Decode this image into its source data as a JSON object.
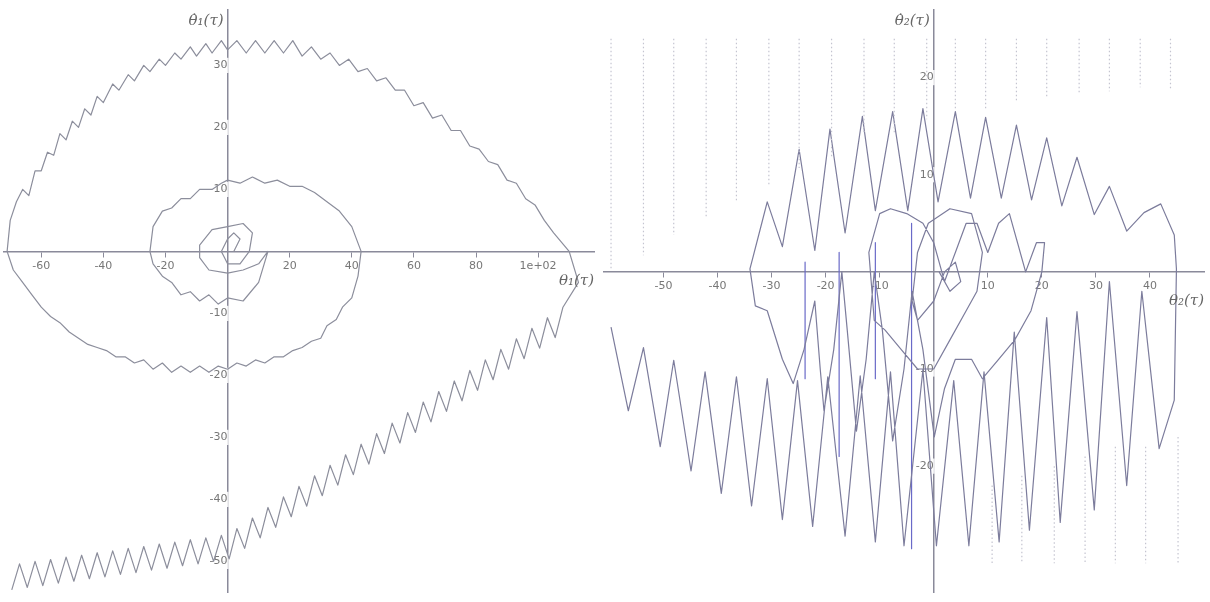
{
  "chart_data": [
    {
      "type": "line",
      "xlabel": "θ₁(τ)",
      "ylabel": "θ̇₁(τ)",
      "xlim": [
        -72,
        118
      ],
      "ylim": [
        -55,
        39
      ],
      "xticks": [
        -60,
        -40,
        -20,
        20,
        40,
        60,
        80,
        {
          "value": 100,
          "label": "1e+02"
        }
      ],
      "yticks": [
        -50,
        -40,
        -30,
        -20,
        -10,
        10,
        20,
        30
      ],
      "grid": false,
      "legend": false,
      "marker": "none",
      "series": [
        {
          "color": "#8c8e9c",
          "x": [
            2,
            4,
            2,
            0,
            -2,
            0,
            4,
            7,
            8,
            5,
            0,
            -5,
            -9,
            -9,
            -6,
            0,
            5,
            10,
            13,
            10,
            5,
            0,
            -3,
            -6,
            -9,
            -12,
            -15,
            -18,
            -21,
            -24,
            -25,
            -24,
            -21,
            -18,
            -15,
            -12,
            -9,
            -5,
            -2,
            0,
            4,
            8,
            12,
            16,
            20,
            24,
            28,
            32,
            36,
            40,
            43,
            42,
            40,
            37,
            35,
            32,
            30,
            27,
            24,
            21,
            18,
            15,
            12,
            9,
            6,
            3,
            0,
            -3,
            -6,
            -9,
            -12,
            -15,
            -18,
            -21,
            -24,
            -27,
            -30,
            -33,
            -36,
            -39,
            -42,
            -45,
            -48,
            -51,
            -54,
            -57,
            -60,
            -63,
            -66,
            -69,
            -71,
            -70,
            -68,
            -66,
            -64,
            -62,
            -60,
            -58,
            -56,
            -54,
            -52,
            -50,
            -48,
            -46,
            -44,
            -42,
            -40,
            -37,
            -35,
            -32,
            -30,
            -27,
            -25,
            -22,
            -20,
            -17,
            -15,
            -12,
            -10,
            -7,
            -5,
            -2,
            0,
            3,
            6,
            9,
            12,
            15,
            18,
            21,
            24,
            27,
            30,
            33,
            36,
            39,
            42,
            45,
            48,
            51,
            54,
            57,
            60,
            63,
            66,
            69,
            72,
            75,
            78,
            81,
            84,
            87,
            90,
            93,
            96,
            99,
            102,
            105,
            110,
            113,
            108,
            105.5,
            103,
            100.5,
            98,
            95.5,
            93,
            90.5,
            88,
            85.5,
            83,
            80.5,
            78,
            75.5,
            73,
            70.5,
            68,
            65.5,
            63,
            60.5,
            58,
            55.5,
            53,
            50.5,
            48,
            45.5,
            43,
            40.5,
            38,
            35.5,
            33,
            30.5,
            28,
            25.5,
            23,
            20.5,
            18,
            15.5,
            13,
            10.5,
            8,
            5.5,
            3,
            0.5,
            -2,
            -4.5,
            -7,
            -9.5,
            -12,
            -14.5,
            -17,
            -19.5,
            -22,
            -24.5,
            -27,
            -29.5,
            -32,
            -34.5,
            -37,
            -39.5,
            -42,
            -44.5,
            -47,
            -49.5,
            -52,
            -54.5,
            -57,
            -59.5,
            -62,
            -64.5,
            -67,
            -69.5
          ],
          "values": [
            0,
            2,
            3,
            2,
            0,
            -2,
            -2,
            0,
            3,
            4.5,
            4,
            3.5,
            1,
            -1,
            -3,
            -3.5,
            -3,
            -2,
            0,
            -5,
            -8,
            -7.5,
            -8.5,
            -7,
            -8,
            -6.5,
            -7,
            -5,
            -4,
            -2,
            0,
            4,
            6.5,
            7,
            8.5,
            8.5,
            10,
            10,
            11,
            11.5,
            11,
            12,
            11,
            11.5,
            10.5,
            10.5,
            9.5,
            8,
            6.5,
            4,
            0,
            -4,
            -7.5,
            -9,
            -11,
            -12,
            -14,
            -14.5,
            -15.5,
            -16,
            -17,
            -17,
            -18,
            -17.5,
            -18.5,
            -18,
            -19,
            -18.5,
            -19.5,
            -18.5,
            -19.5,
            -18.5,
            -19.5,
            -18,
            -19,
            -17.5,
            -18,
            -17,
            -17,
            -16,
            -15.5,
            -15,
            -14,
            -13,
            -11.5,
            -10.5,
            -9,
            -7,
            -5,
            -3,
            0,
            5,
            8,
            10,
            9,
            13,
            13,
            16,
            15.5,
            19,
            18,
            21,
            20,
            23,
            22,
            25,
            24,
            27,
            26,
            28.5,
            27.5,
            30,
            29,
            31,
            30,
            32,
            31,
            33,
            31.5,
            33.5,
            32,
            34,
            32.5,
            34,
            32,
            34,
            32,
            34,
            32,
            34,
            31.5,
            33,
            31,
            32,
            30,
            31,
            29,
            29.5,
            27.5,
            28,
            26,
            26,
            23.5,
            24,
            21.5,
            22,
            19.5,
            19.5,
            17,
            16.5,
            14.5,
            14,
            11.5,
            11,
            8.5,
            7.5,
            5,
            3,
            0,
            -5,
            -9,
            -13.9,
            -10.7,
            -15.6,
            -12.4,
            -17.3,
            -14.1,
            -19,
            -15.8,
            -20.7,
            -17.5,
            -22.4,
            -19.2,
            -24.1,
            -20.9,
            -25.8,
            -22.6,
            -27.5,
            -24.3,
            -29.2,
            -26,
            -30.9,
            -27.7,
            -32.6,
            -29.4,
            -34.3,
            -31.1,
            -36,
            -32.8,
            -37.7,
            -34.5,
            -39.4,
            -36.2,
            -41.1,
            -37.9,
            -42.8,
            -39.6,
            -44.5,
            -41.3,
            -46.2,
            -43,
            -47.9,
            -44.7,
            -49.6,
            -45.8,
            -50,
            -46.2,
            -50.4,
            -46.5,
            -50.7,
            -46.9,
            -51.1,
            -47.2,
            -51.4,
            -47.6,
            -51.8,
            -47.9,
            -52.1,
            -48.3,
            -52.5,
            -48.6,
            -52.8,
            -49,
            -53.2,
            -49.3,
            -53.5,
            -49.7,
            -53.9,
            -50,
            -54.2,
            -50.4,
            -54.6
          ]
        }
      ]
    },
    {
      "type": "line",
      "xlabel": "θ₂(τ)",
      "ylabel": "θ̇₂(τ)",
      "xlim": [
        -61,
        50
      ],
      "ylim": [
        -33,
        27
      ],
      "xticks": [
        -50,
        -40,
        -30,
        -20,
        -10,
        10,
        20,
        30,
        40
      ],
      "yticks": [
        -20,
        -10,
        10,
        20
      ],
      "grid": false,
      "legend": false,
      "marker": "none",
      "series": [
        {
          "color": "#c4c4d0",
          "line_style": "dotted",
          "x": [
            -59.7,
            -59.7,
            null,
            -53.7,
            -53.7,
            null,
            -48.1,
            -48.1,
            null,
            -42.1,
            -42.1,
            null,
            -36.5,
            -36.5,
            null,
            -30.5,
            -30.5,
            null,
            -24.9,
            -24.9,
            null,
            -18.9,
            -18.9,
            null,
            -12.9,
            -12.9,
            null,
            -7.3,
            -7.3,
            null,
            -1.3,
            -1.3,
            null,
            4,
            4,
            null,
            9.6,
            9.6,
            null,
            15.3,
            15.3,
            null,
            20.9,
            20.9,
            null,
            26.9,
            26.9,
            null,
            32.5,
            32.5,
            null,
            38.2,
            38.2,
            null,
            43.8,
            43.8,
            null,
            10.8,
            10.8,
            null,
            16.3,
            16.3,
            null,
            22.3,
            22.3,
            null,
            28,
            28,
            null,
            33.6,
            33.6,
            null,
            39.2,
            39.2,
            null,
            45.2,
            45.2
          ],
          "values": [
            24,
            0.3,
            null,
            24,
            1.7,
            null,
            24,
            3.8,
            null,
            24,
            5.5,
            null,
            24,
            7.2,
            null,
            24,
            9,
            null,
            24,
            10.7,
            null,
            24,
            11.8,
            null,
            24,
            14.2,
            null,
            24,
            14.2,
            null,
            24,
            15.7,
            null,
            24,
            16.8,
            null,
            24,
            16.8,
            null,
            24,
            17.4,
            null,
            24,
            18,
            null,
            24,
            18.4,
            null,
            24,
            18.6,
            null,
            24,
            19,
            null,
            24,
            18.8,
            null,
            -22,
            -30,
            null,
            -21,
            -30,
            null,
            -20,
            -30,
            null,
            -19,
            -30,
            null,
            -18,
            -30,
            null,
            -18,
            -30,
            null,
            -17,
            -30
          ]
        },
        {
          "color": "#7c7c9c",
          "x": [
            -59.7,
            -56.5,
            -53.7,
            -50.6,
            -48.1,
            -44.9,
            -42.3,
            -39.3,
            -36.5,
            -33.7,
            -30.8,
            -28,
            -25.2,
            -22.4,
            -19.6,
            -16.4,
            -13.6,
            -10.8,
            -8,
            -5.5,
            -2,
            0.5,
            3.7,
            6.5,
            9.3,
            12.1,
            14.9,
            17.7,
            20.9,
            23.4,
            26.5,
            29.7,
            32.5,
            35.7,
            38.5,
            41.7,
            44.5,
            44.9,
            44.5,
            42,
            38.9,
            35.7,
            32.5,
            29.7,
            26.5,
            23.7,
            20.9,
            18.1,
            15.3,
            12.5,
            9.6,
            6.8,
            4,
            0.8,
            -2,
            -4.8,
            -7.6,
            -10.8,
            -13.2,
            -16.4,
            -19.2,
            -22,
            -24.9,
            -28,
            -30.8,
            -34,
            -33,
            -30.8,
            -28,
            -26,
            -24,
            -22,
            -21,
            -20.3,
            -18.5,
            -17,
            -16,
            -14.3,
            -12.5,
            -11,
            -9.5,
            -7.6,
            -5.5,
            -4,
            -2,
            0.1,
            2,
            4,
            7,
            9,
            12,
            15,
            18,
            20,
            20.5,
            19,
            17,
            14,
            12,
            10,
            8,
            6,
            4,
            2,
            0,
            -2,
            -5,
            -8,
            -10,
            -12,
            -11,
            -9,
            -6,
            -3,
            0,
            3,
            6,
            8,
            9,
            7,
            3,
            -1,
            -3,
            -4,
            -3,
            0,
            2,
            4,
            5,
            3,
            1
          ],
          "values": [
            -5.7,
            -14.3,
            -7.8,
            -18,
            -9.1,
            -20.5,
            -10.3,
            -22.8,
            -10.8,
            -24.1,
            -11,
            -25.5,
            -11.2,
            -26.2,
            -10.8,
            -27.2,
            -10.7,
            -27.8,
            -10.3,
            -28.2,
            -10.1,
            -28.2,
            -11.2,
            -28.2,
            -10.3,
            -27.8,
            -6.2,
            -26.6,
            -4.7,
            -25.8,
            -4.1,
            -24.5,
            -1,
            -22,
            -2,
            -18.2,
            -13.2,
            0.3,
            3.8,
            7,
            6.1,
            4.2,
            8.8,
            5.9,
            11.8,
            6.8,
            13.8,
            7.4,
            15.1,
            7.6,
            15.9,
            7.6,
            16.5,
            7.2,
            16.8,
            6.3,
            16.5,
            6.3,
            16,
            4,
            14.7,
            2.2,
            12.6,
            2.6,
            7.2,
            0.3,
            -3.5,
            -4,
            -9,
            -11.5,
            -8,
            -3,
            -10,
            -14.3,
            -8,
            0,
            -6,
            -16.4,
            -9,
            0,
            -6,
            -17.4,
            -10,
            -2,
            -8,
            -17,
            -12,
            -9,
            -9,
            -11,
            -9,
            -7,
            -4,
            0,
            3,
            3,
            0,
            6,
            5,
            2,
            5,
            5,
            2,
            -1,
            3,
            5,
            6,
            6.5,
            6,
            2,
            -5,
            -6,
            -8,
            -10,
            -10,
            -7,
            -4,
            -2,
            2,
            6,
            6.5,
            5,
            2,
            -3,
            -5,
            -3,
            0,
            1,
            -1,
            -2,
            0
          ]
        },
        {
          "color": "#6a6ac8",
          "x": [
            -23.8,
            -23.8,
            null,
            -17.5,
            -17.5,
            null,
            -10.8,
            -10.8,
            null,
            -4.1,
            -4.1
          ],
          "values": [
            1,
            -11,
            null,
            2,
            -19,
            null,
            3,
            -11,
            null,
            5,
            -28.5
          ]
        }
      ]
    }
  ]
}
